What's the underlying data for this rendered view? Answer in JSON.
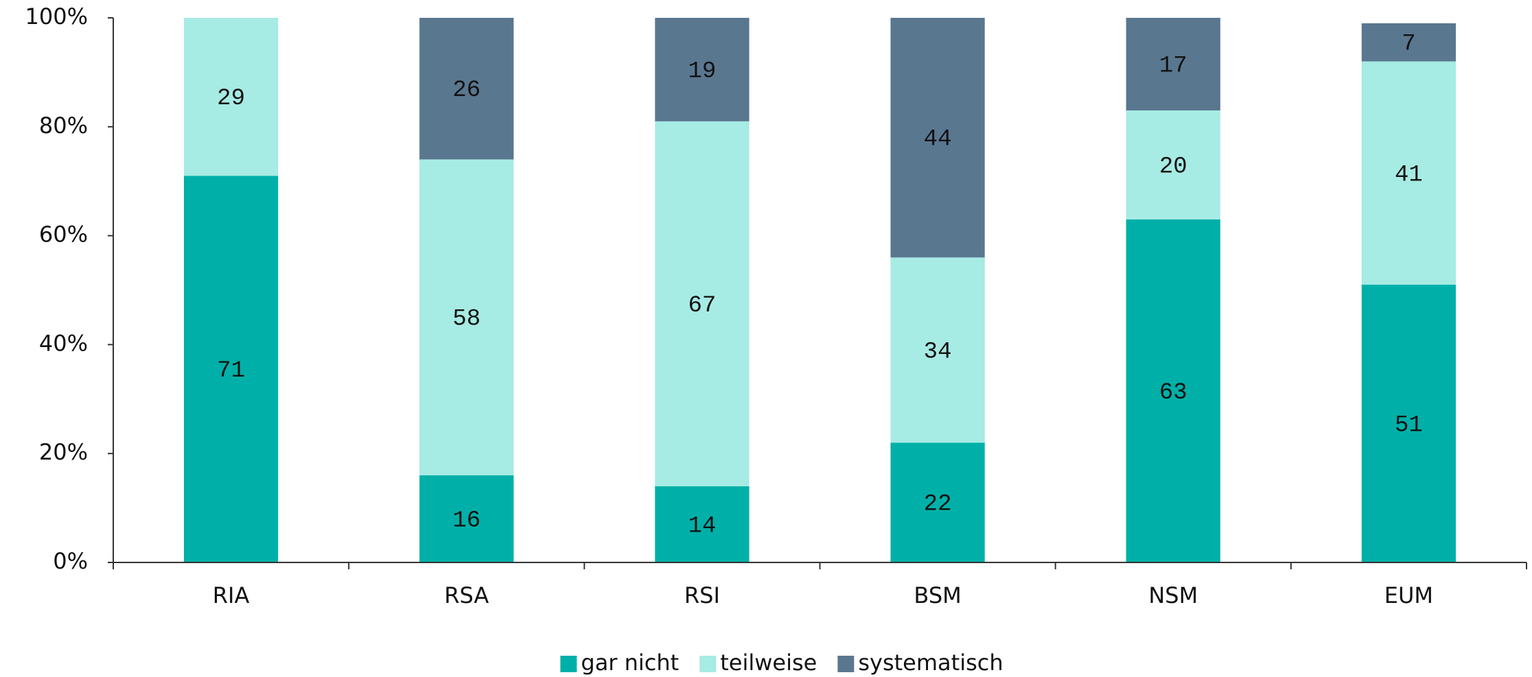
{
  "chart_data": {
    "type": "bar",
    "stacked": true,
    "categories": [
      "RIA",
      "RSA",
      "RSI",
      "BSM",
      "NSM",
      "EUM"
    ],
    "series": [
      {
        "name": "gar nicht",
        "color": "#00b0a8",
        "values": [
          71,
          16,
          14,
          22,
          63,
          51
        ]
      },
      {
        "name": "teilweise",
        "color": "#a6ebe4",
        "values": [
          29,
          58,
          67,
          34,
          20,
          41
        ]
      },
      {
        "name": "systematisch",
        "color": "#5a7790",
        "values": [
          0,
          26,
          19,
          44,
          17,
          7
        ]
      }
    ],
    "ylim": [
      0,
      100
    ],
    "yticks": [
      {
        "value": 0,
        "label": "0%"
      },
      {
        "value": 20,
        "label": "20%"
      },
      {
        "value": 40,
        "label": "40%"
      },
      {
        "value": 60,
        "label": "60%"
      },
      {
        "value": 80,
        "label": "80%"
      },
      {
        "value": 100,
        "label": "100%"
      }
    ],
    "legend": "bottom"
  }
}
